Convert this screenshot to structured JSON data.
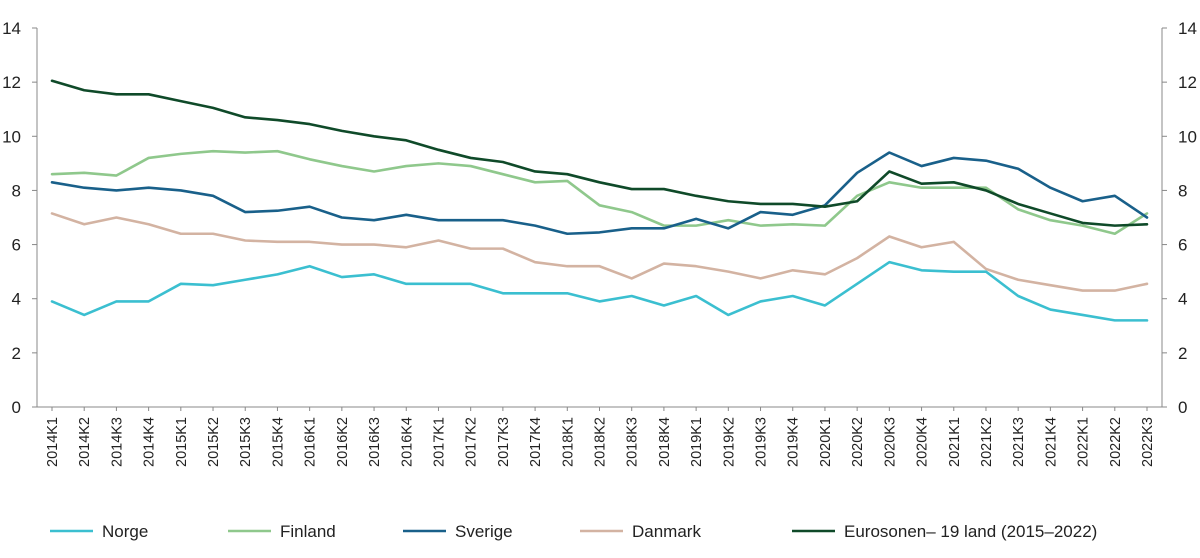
{
  "chart_data": {
    "type": "line",
    "title": "",
    "xlabel": "",
    "ylabel": "",
    "ylim": [
      0,
      14
    ],
    "yticks": [
      0,
      2,
      4,
      6,
      8,
      10,
      12,
      14
    ],
    "grid": false,
    "legend_position": "bottom",
    "categories": [
      "2014K1",
      "2014K2",
      "2014K3",
      "2014K4",
      "2015K1",
      "2015K2",
      "2015K3",
      "2015K4",
      "2016K1",
      "2016K2",
      "2016K3",
      "2016K4",
      "2017K1",
      "2017K2",
      "2017K3",
      "2017K4",
      "2018K1",
      "2018K2",
      "2018K3",
      "2018K4",
      "2019K1",
      "2019K2",
      "2019K3",
      "2019K4",
      "2020K1",
      "2020K2",
      "2020K3",
      "2020K4",
      "2021K1",
      "2021K2",
      "2021K3",
      "2021K4",
      "2022K1",
      "2022K2",
      "2022K3"
    ],
    "series": [
      {
        "name": "Norge",
        "color": "#3bbfd0",
        "values": [
          3.9,
          3.4,
          3.9,
          3.9,
          4.55,
          4.5,
          4.7,
          4.9,
          5.2,
          4.8,
          4.9,
          4.55,
          4.55,
          4.55,
          4.2,
          4.2,
          4.2,
          3.9,
          4.1,
          3.75,
          4.1,
          3.4,
          3.9,
          4.1,
          3.75,
          4.55,
          5.35,
          5.05,
          5.0,
          5.0,
          4.1,
          3.6,
          3.4,
          3.2,
          3.2
        ]
      },
      {
        "name": "Finland",
        "color": "#8fc88c",
        "values": [
          8.6,
          8.65,
          8.55,
          9.2,
          9.35,
          9.45,
          9.4,
          9.45,
          9.15,
          8.9,
          8.7,
          8.9,
          9.0,
          8.9,
          8.6,
          8.3,
          8.35,
          7.45,
          7.2,
          6.7,
          6.7,
          6.9,
          6.7,
          6.75,
          6.7,
          7.8,
          8.3,
          8.1,
          8.1,
          8.1,
          7.3,
          6.9,
          6.7,
          6.4,
          7.15
        ]
      },
      {
        "name": "Sverige",
        "color": "#19608a",
        "values": [
          8.3,
          8.1,
          8.0,
          8.1,
          8.0,
          7.8,
          7.2,
          7.25,
          7.4,
          7.0,
          6.9,
          7.1,
          6.9,
          6.9,
          6.9,
          6.7,
          6.4,
          6.45,
          6.6,
          6.6,
          6.95,
          6.6,
          7.2,
          7.1,
          7.45,
          8.65,
          9.4,
          8.9,
          9.2,
          9.1,
          8.8,
          8.1,
          7.6,
          7.8,
          7.0
        ]
      },
      {
        "name": "Danmark",
        "color": "#d3b3a2",
        "values": [
          7.15,
          6.75,
          7.0,
          6.75,
          6.4,
          6.4,
          6.15,
          6.1,
          6.1,
          6.0,
          6.0,
          5.9,
          6.15,
          5.85,
          5.85,
          5.35,
          5.2,
          5.2,
          4.75,
          5.3,
          5.2,
          5.0,
          4.75,
          5.05,
          4.9,
          5.5,
          6.3,
          5.9,
          6.1,
          5.1,
          4.7,
          4.5,
          4.3,
          4.3,
          4.55
        ]
      },
      {
        "name": "Eurosonen– 19 land  (2015–2022)",
        "color": "#0f4a29",
        "values": [
          12.05,
          11.7,
          11.55,
          11.55,
          11.3,
          11.05,
          10.7,
          10.6,
          10.45,
          10.2,
          10.0,
          9.85,
          9.5,
          9.2,
          9.05,
          8.7,
          8.6,
          8.3,
          8.05,
          8.05,
          7.8,
          7.6,
          7.5,
          7.5,
          7.4,
          7.6,
          8.7,
          8.25,
          8.3,
          8.0,
          7.5,
          7.15,
          6.8,
          6.7,
          6.75
        ]
      }
    ]
  }
}
